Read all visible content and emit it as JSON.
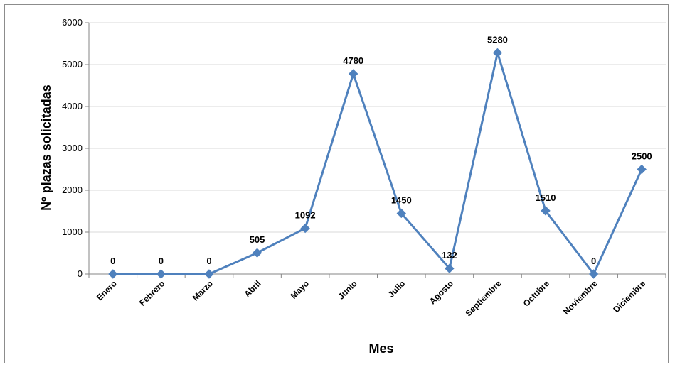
{
  "chart_data": {
    "type": "line",
    "title": "",
    "xlabel": "Mes",
    "ylabel": "Nº plazas solicitadas",
    "ylim": [
      0,
      6000
    ],
    "yticks": [
      "0",
      "1000",
      "2000",
      "3000",
      "4000",
      "5000",
      "6000"
    ],
    "grid": true,
    "legend": "none",
    "categories": [
      "Enero",
      "Febrero",
      "Marzo",
      "Abril",
      "Mayo",
      "Junio",
      "Julio",
      "Agosto",
      "Septiembre",
      "Octubre",
      "Noviembre",
      "Diciembre"
    ],
    "series": [
      {
        "values": [
          0,
          0,
          0,
          505,
          1092,
          4780,
          1450,
          132,
          5280,
          1510,
          0,
          2500
        ],
        "color": "#4F81BD",
        "marker": "diamond"
      }
    ],
    "data_labels": [
      "0",
      "0",
      "0",
      "505",
      "1092",
      "4780",
      "1450",
      "132",
      "5280",
      "1510",
      "0",
      "2500"
    ]
  }
}
